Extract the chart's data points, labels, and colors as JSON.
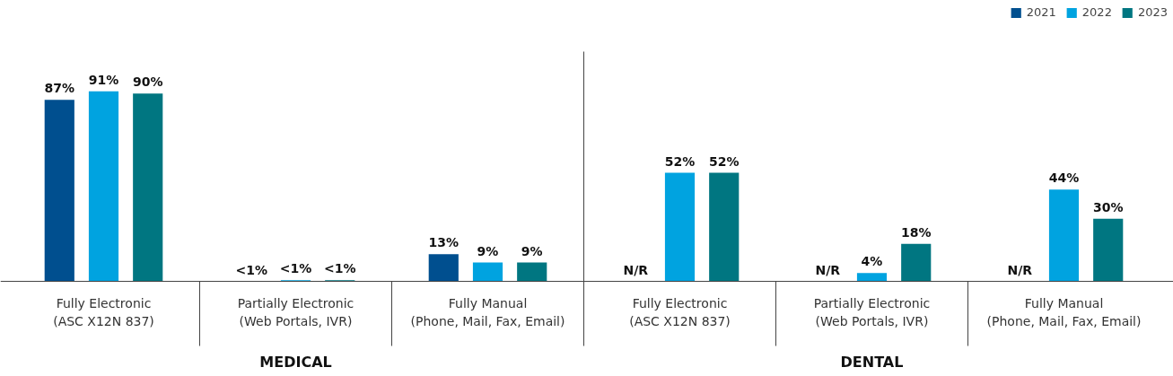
{
  "chart_data": {
    "type": "bar",
    "categories": [
      "Fully Electronic\n(ASC X12N 837)",
      "Partially Electronic\n(Web Portals, IVR)",
      "Fully Manual\n(Phone, Mail, Fax, Email)",
      "Fully Electronic\n(ASC X12N 837)",
      "Partially Electronic\n(Web Portals, IVR)",
      "Fully Manual\n(Phone, Mail, Fax, Email)"
    ],
    "series": [
      {
        "name": "2021",
        "color": "#004f8f",
        "values": [
          87,
          null,
          13,
          null,
          null,
          null
        ],
        "value_labels": [
          "87%",
          "<1%",
          "13%",
          "N/R",
          "N/R",
          "N/R"
        ]
      },
      {
        "name": "2022",
        "color": "#00a3e0",
        "values": [
          91,
          0.5,
          9,
          52,
          4,
          44
        ],
        "value_labels": [
          "91%",
          "<1%",
          "9%",
          "52%",
          "4%",
          "44%"
        ]
      },
      {
        "name": "2023",
        "color": "#007681",
        "values": [
          90,
          0.5,
          9,
          52,
          18,
          30
        ],
        "value_labels": [
          "90%",
          "<1%",
          "9%",
          "52%",
          "18%",
          "30%"
        ]
      }
    ],
    "annotations": [
      "MEDICAL",
      "DENTAL"
    ],
    "legend": "top right"
  }
}
